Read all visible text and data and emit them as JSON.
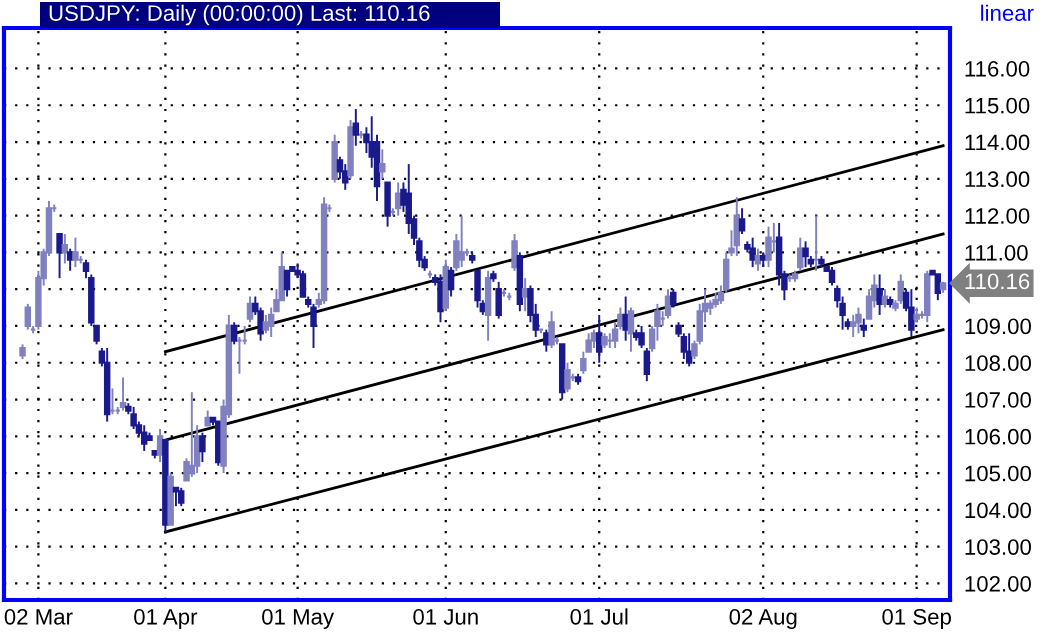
{
  "chart_data": {
    "type": "candlestick",
    "title": "USDJPY: Daily (00:00:00) Last: 110.16",
    "annotations": [
      "linear",
      "110.16"
    ],
    "grid": true,
    "colors": [
      "#8181c0",
      "#8181c0",
      "#8181c0",
      "#8181c0",
      "#8181c0",
      "#8181c0",
      "#8181c0",
      "#1a1a8c",
      "#8181c0",
      "#1a1a8c",
      "#8181c0",
      "#8181c0",
      "#1a1a8c",
      "#1a1a8c",
      "#1a1a8c",
      "#1a1a8c",
      "#1a1a8c",
      "#8181c0",
      "#8181c0",
      "#8181c0",
      "#1a1a8c",
      "#1a1a8c",
      "#1a1a8c",
      "#1a1a8c",
      "#1a1a8c",
      "#1a1a8c",
      "#8181c0",
      "#1a1a8c",
      "#8181c0",
      "#1a1a8c",
      "#1a1a8c",
      "#8181c0",
      "#8181c0",
      "#8181c0",
      "#1a1a8c",
      "#8181c0",
      "#1a1a8c",
      "#1a1a8c",
      "#8181c0",
      "#8181c0",
      "#1a1a8c",
      "#8181c0",
      "#8181c0",
      "#8181c0",
      "#1a1a8c",
      "#1a1a8c",
      "#8181c0",
      "#8181c0",
      "#8181c0",
      "#8181c0",
      "#1a1a8c",
      "#1a1a8c",
      "#1a1a8c",
      "#1a1a8c",
      "#1a1a8c",
      "#1a1a8c",
      "#8181c0",
      "#8181c0",
      "#8181c0",
      "#8181c0",
      "#1a1a8c",
      "#1a1a8c",
      "#8181c0",
      "#1a1a8c",
      "#8181c0",
      "#1a1a8c",
      "#1a1a8c",
      "#1a1a8c",
      "#8181c0",
      "#1a1a8c",
      "#8181c0",
      "#8181c0",
      "#1a1a8c",
      "#1a1a8c",
      "#1a1a8c",
      "#1a1a8c",
      "#1a1a8c",
      "#8181c0",
      "#1a1a8c",
      "#1a1a8c",
      "#8181c0",
      "#1a1a8c",
      "#8181c0",
      "#8181c0",
      "#8181c0",
      "#1a1a8c",
      "#1a1a8c",
      "#1a1a8c",
      "#8181c0",
      "#1a1a8c",
      "#1a1a8c",
      "#8181c0",
      "#8181c0",
      "#8181c0",
      "#1a1a8c",
      "#8181c0",
      "#1a1a8c",
      "#1a1a8c",
      "#8181c0",
      "#1a1a8c",
      "#8181c0",
      "#8181c0",
      "#1a1a8c",
      "#8181c0",
      "#8181c0",
      "#1a1a8c",
      "#8181c0",
      "#8181c0",
      "#8181c0",
      "#1a1a8c",
      "#8181c0",
      "#8181c0",
      "#8181c0",
      "#8181c0",
      "#1a1a8c",
      "#8181c0",
      "#1a1a8c",
      "#1a1a8c",
      "#1a1a8c",
      "#8181c0",
      "#8181c0",
      "#8181c0",
      "#8181c0",
      "#1a1a8c",
      "#1a1a8c",
      "#1a1a8c",
      "#1a1a8c",
      "#8181c0",
      "#8181c0",
      "#8181c0",
      "#8181c0",
      "#8181c0",
      "#8181c0",
      "#8181c0",
      "#8181c0",
      "#8181c0",
      "#1a1a8c",
      "#1a1a8c",
      "#1a1a8c",
      "#8181c0",
      "#1a1a8c",
      "#8181c0",
      "#8181c0",
      "#1a1a8c",
      "#1a1a8c",
      "#8181c0",
      "#8181c0",
      "#8181c0",
      "#1a1a8c",
      "#1a1a8c",
      "#8181c0",
      "#1a1a8c",
      "#1a1a8c",
      "#1a1a8c",
      "#1a1a8c",
      "#1a1a8c",
      "#1a1a8c",
      "#8181c0",
      "#8181c0",
      "#1a1a8c",
      "#8181c0",
      "#8181c0",
      "#1a1a8c",
      "#8181c0",
      "#1a1a8c",
      "#8181c0",
      "#8181c0",
      "#1a1a8c",
      "#1a1a8c",
      "#8181c0",
      "#8181c0",
      "#8181c0",
      "#1a1a8c",
      "#1a1a8c",
      "#8181c0"
    ],
    "categories": [
      null,
      null,
      null,
      "02 Mar",
      null,
      null,
      null,
      null,
      null,
      null,
      null,
      null,
      null,
      null,
      null,
      null,
      null,
      null,
      null,
      null,
      null,
      null,
      null,
      null,
      null,
      null,
      null,
      "01 Apr",
      null,
      null,
      null,
      null,
      null,
      null,
      null,
      null,
      null,
      null,
      null,
      null,
      null,
      null,
      null,
      null,
      null,
      null,
      null,
      null,
      null,
      null,
      null,
      null,
      "01 May",
      null,
      null,
      null,
      null,
      null,
      null,
      null,
      null,
      null,
      null,
      null,
      null,
      null,
      null,
      null,
      null,
      null,
      null,
      null,
      null,
      null,
      null,
      null,
      null,
      null,
      null,
      null,
      "01 Jun",
      null,
      null,
      null,
      null,
      null,
      null,
      null,
      null,
      null,
      null,
      null,
      null,
      null,
      null,
      null,
      null,
      null,
      null,
      null,
      null,
      null,
      null,
      null,
      null,
      null,
      null,
      null,
      null,
      "01 Jul",
      null,
      null,
      null,
      null,
      null,
      null,
      null,
      null,
      null,
      null,
      null,
      null,
      null,
      null,
      null,
      null,
      null,
      null,
      null,
      null,
      null,
      null,
      null,
      null,
      null,
      null,
      null,
      null,
      null,
      null,
      "02 Aug",
      null,
      null,
      null,
      null,
      null,
      null,
      null,
      null,
      null,
      null,
      null,
      null,
      null,
      null,
      null,
      null,
      null,
      null,
      null,
      null,
      null,
      null,
      null,
      null,
      null,
      null,
      null,
      null,
      "01 Sep",
      null,
      null,
      null,
      null,
      null
    ],
    "ohlc": [
      [
        108.2,
        108.5,
        108.1,
        108.4
      ],
      [
        109.0,
        109.6,
        108.9,
        109.5
      ],
      [
        108.9,
        109.0,
        108.8,
        108.9
      ],
      [
        109.0,
        110.5,
        108.9,
        110.3
      ],
      [
        110.3,
        111.1,
        110.1,
        111.0
      ],
      [
        111.0,
        112.4,
        110.9,
        112.2
      ],
      [
        112.2,
        112.3,
        112.1,
        112.2
      ],
      [
        111.5,
        111.5,
        110.3,
        111.0
      ],
      [
        111.0,
        111.5,
        110.7,
        111.2
      ],
      [
        111.0,
        111.1,
        110.5,
        110.8
      ],
      [
        110.8,
        111.4,
        110.6,
        111.0
      ],
      [
        110.8,
        110.9,
        110.7,
        110.8
      ],
      [
        110.7,
        110.8,
        110.3,
        110.5
      ],
      [
        110.3,
        110.4,
        109.0,
        109.1
      ],
      [
        109.0,
        109.0,
        108.5,
        108.6
      ],
      [
        108.3,
        108.4,
        107.9,
        108.0
      ],
      [
        108.0,
        108.4,
        106.4,
        106.6
      ],
      [
        106.7,
        107.3,
        106.6,
        106.7
      ],
      [
        106.7,
        106.8,
        106.6,
        106.7
      ],
      [
        106.8,
        107.6,
        106.7,
        106.9
      ],
      [
        106.8,
        106.9,
        106.6,
        106.7
      ],
      [
        106.6,
        106.8,
        106.2,
        106.3
      ],
      [
        106.3,
        106.4,
        106.0,
        106.1
      ],
      [
        106.1,
        106.3,
        105.6,
        105.8
      ],
      [
        106.0,
        106.1,
        105.9,
        105.9
      ],
      [
        105.6,
        105.6,
        105.4,
        105.5
      ],
      [
        105.5,
        106.2,
        105.3,
        106.0
      ],
      [
        105.9,
        105.9,
        103.4,
        103.6
      ],
      [
        103.6,
        105.0,
        103.6,
        104.9
      ],
      [
        104.6,
        104.6,
        104.1,
        104.5
      ],
      [
        104.5,
        104.6,
        104.1,
        104.2
      ],
      [
        104.8,
        105.4,
        104.8,
        105.3
      ],
      [
        105.0,
        107.2,
        104.9,
        105.2
      ],
      [
        105.2,
        106.3,
        105.0,
        106.0
      ],
      [
        106.0,
        106.1,
        105.3,
        105.6
      ],
      [
        106.3,
        106.7,
        106.3,
        106.5
      ],
      [
        106.5,
        106.5,
        106.3,
        106.4
      ],
      [
        106.4,
        106.4,
        105.2,
        105.3
      ],
      [
        105.2,
        107.0,
        105.0,
        106.8
      ],
      [
        106.6,
        109.3,
        106.5,
        109.0
      ],
      [
        109.0,
        109.1,
        108.5,
        108.6
      ],
      [
        108.6,
        108.7,
        107.7,
        108.6
      ],
      [
        108.6,
        109.0,
        108.5,
        108.6
      ],
      [
        109.2,
        109.8,
        109.1,
        109.6
      ],
      [
        109.6,
        109.8,
        109.3,
        109.4
      ],
      [
        109.4,
        109.5,
        108.6,
        108.8
      ],
      [
        108.9,
        109.3,
        108.8,
        109.1
      ],
      [
        109.0,
        109.5,
        108.7,
        109.3
      ],
      [
        109.4,
        110.0,
        109.4,
        109.7
      ],
      [
        109.7,
        111.0,
        109.7,
        110.6
      ],
      [
        110.5,
        110.5,
        109.8,
        110.0
      ],
      [
        110.6,
        110.6,
        110.5,
        110.5
      ],
      [
        110.5,
        110.7,
        110.3,
        110.4
      ],
      [
        110.4,
        110.5,
        109.8,
        109.8
      ],
      [
        109.7,
        109.8,
        109.5,
        109.6
      ],
      [
        109.5,
        109.6,
        108.4,
        109.0
      ],
      [
        109.6,
        109.9,
        109.5,
        109.7
      ],
      [
        109.7,
        112.5,
        109.6,
        112.3
      ],
      [
        112.2,
        112.3,
        112.1,
        112.2
      ],
      [
        113.0,
        114.2,
        112.9,
        114.0
      ],
      [
        113.5,
        113.6,
        113.0,
        113.2
      ],
      [
        113.2,
        113.4,
        112.7,
        112.9
      ],
      [
        113.1,
        114.6,
        113.0,
        114.4
      ],
      [
        114.5,
        114.9,
        113.9,
        114.2
      ],
      [
        114.2,
        114.3,
        114.1,
        114.2
      ],
      [
        114.2,
        114.4,
        113.7,
        114.0
      ],
      [
        114.0,
        114.7,
        113.3,
        113.6
      ],
      [
        114.0,
        114.2,
        112.4,
        112.8
      ],
      [
        113.2,
        113.8,
        113.0,
        113.4
      ],
      [
        112.9,
        112.9,
        111.7,
        112.0
      ],
      [
        112.1,
        112.2,
        112.0,
        112.1
      ],
      [
        112.2,
        112.9,
        112.0,
        112.6
      ],
      [
        112.7,
        112.9,
        112.1,
        112.3
      ],
      [
        112.6,
        113.4,
        111.5,
        111.8
      ],
      [
        111.9,
        112.0,
        111.2,
        111.4
      ],
      [
        111.3,
        111.4,
        110.6,
        110.8
      ],
      [
        110.8,
        110.9,
        110.5,
        110.6
      ],
      [
        110.4,
        110.5,
        110.3,
        110.4
      ],
      [
        110.3,
        110.4,
        110.1,
        110.2
      ],
      [
        110.2,
        110.4,
        109.1,
        109.4
      ],
      [
        109.5,
        110.8,
        109.4,
        110.6
      ],
      [
        110.5,
        110.6,
        109.8,
        110.0
      ],
      [
        110.6,
        111.5,
        110.5,
        111.3
      ],
      [
        110.8,
        112.0,
        110.6,
        111.0
      ],
      [
        111.0,
        111.1,
        110.9,
        111.0
      ],
      [
        110.9,
        111.0,
        110.7,
        110.8
      ],
      [
        110.5,
        110.5,
        109.5,
        109.7
      ],
      [
        109.6,
        109.7,
        109.3,
        109.4
      ],
      [
        109.3,
        110.5,
        108.6,
        110.3
      ],
      [
        110.4,
        110.5,
        110.2,
        110.3
      ],
      [
        110.0,
        110.2,
        109.2,
        109.3
      ],
      [
        109.9,
        110.0,
        109.8,
        109.9
      ],
      [
        109.8,
        109.9,
        109.7,
        109.8
      ],
      [
        110.6,
        111.5,
        110.5,
        111.3
      ],
      [
        110.9,
        111.0,
        109.4,
        109.6
      ],
      [
        109.8,
        110.3,
        109.4,
        110.0
      ],
      [
        110.0,
        110.1,
        109.1,
        109.3
      ],
      [
        109.3,
        109.6,
        108.7,
        108.9
      ],
      [
        108.9,
        108.9,
        108.8,
        108.9
      ],
      [
        108.8,
        108.9,
        108.3,
        108.5
      ],
      [
        108.5,
        109.4,
        108.4,
        109.1
      ],
      [
        108.6,
        108.7,
        108.5,
        108.6
      ],
      [
        108.5,
        108.5,
        107.0,
        107.2
      ],
      [
        107.3,
        108.0,
        107.2,
        107.8
      ],
      [
        107.6,
        107.7,
        107.5,
        107.6
      ],
      [
        107.6,
        107.7,
        107.4,
        107.5
      ],
      [
        107.8,
        108.3,
        107.7,
        108.1
      ],
      [
        108.3,
        108.8,
        108.3,
        108.6
      ],
      [
        108.6,
        108.9,
        108.4,
        108.8
      ],
      [
        108.8,
        109.3,
        108.0,
        108.3
      ],
      [
        108.5,
        108.8,
        108.4,
        108.7
      ],
      [
        108.6,
        108.8,
        108.4,
        108.6
      ],
      [
        108.6,
        109.1,
        108.4,
        108.9
      ],
      [
        109.0,
        109.5,
        108.9,
        109.3
      ],
      [
        109.3,
        109.8,
        108.6,
        108.9
      ],
      [
        108.8,
        109.5,
        108.3,
        109.4
      ],
      [
        108.8,
        108.9,
        108.6,
        108.7
      ],
      [
        108.8,
        109.0,
        108.4,
        108.5
      ],
      [
        108.3,
        108.4,
        107.5,
        107.7
      ],
      [
        108.4,
        109.0,
        108.3,
        108.9
      ],
      [
        109.0,
        109.6,
        108.6,
        109.4
      ],
      [
        109.2,
        109.4,
        109.0,
        109.2
      ],
      [
        109.3,
        110.0,
        109.2,
        109.8
      ],
      [
        109.9,
        110.0,
        109.5,
        109.6
      ],
      [
        109.0,
        109.1,
        108.7,
        108.8
      ],
      [
        108.7,
        108.8,
        108.1,
        108.3
      ],
      [
        108.3,
        108.8,
        107.9,
        108.0
      ],
      [
        108.2,
        108.6,
        108.1,
        108.5
      ],
      [
        108.6,
        109.6,
        108.5,
        109.4
      ],
      [
        109.4,
        110.0,
        109.1,
        109.6
      ],
      [
        109.5,
        109.7,
        109.3,
        109.6
      ],
      [
        109.6,
        109.9,
        109.5,
        109.7
      ],
      [
        109.7,
        110.1,
        109.6,
        109.9
      ],
      [
        110.0,
        111.0,
        109.9,
        110.8
      ],
      [
        111.0,
        111.6,
        110.9,
        111.1
      ],
      [
        111.2,
        112.5,
        110.9,
        112.0
      ],
      [
        111.9,
        112.2,
        111.5,
        111.6
      ],
      [
        111.2,
        111.3,
        111.0,
        111.1
      ],
      [
        111.1,
        111.4,
        110.6,
        110.8
      ],
      [
        110.7,
        111.1,
        110.5,
        110.9
      ],
      [
        110.9,
        111.0,
        110.6,
        110.8
      ],
      [
        110.8,
        111.7,
        110.6,
        111.4
      ],
      [
        111.3,
        111.8,
        111.0,
        111.3
      ],
      [
        111.4,
        111.8,
        110.1,
        110.4
      ],
      [
        110.4,
        110.5,
        109.7,
        110.0
      ],
      [
        110.3,
        110.4,
        110.2,
        110.3
      ],
      [
        110.3,
        110.5,
        110.2,
        110.4
      ],
      [
        110.6,
        111.4,
        110.5,
        111.1
      ],
      [
        111.1,
        111.3,
        110.6,
        110.9
      ],
      [
        110.8,
        110.9,
        110.6,
        110.7
      ],
      [
        110.8,
        112.0,
        110.5,
        110.8
      ],
      [
        110.8,
        110.9,
        110.6,
        110.7
      ],
      [
        110.6,
        110.6,
        110.5,
        110.5
      ],
      [
        110.5,
        110.6,
        110.1,
        110.2
      ],
      [
        110.0,
        110.1,
        109.5,
        109.7
      ],
      [
        109.6,
        109.8,
        108.9,
        109.3
      ],
      [
        109.1,
        109.2,
        108.9,
        109.0
      ],
      [
        109.0,
        109.3,
        108.7,
        109.1
      ],
      [
        109.1,
        109.5,
        108.8,
        109.3
      ],
      [
        109.0,
        109.2,
        108.7,
        108.9
      ],
      [
        109.2,
        110.0,
        109.2,
        109.8
      ],
      [
        109.7,
        110.4,
        109.5,
        110.1
      ],
      [
        110.0,
        110.4,
        109.3,
        109.6
      ],
      [
        109.6,
        110.0,
        109.5,
        109.8
      ],
      [
        109.7,
        109.8,
        109.5,
        109.6
      ],
      [
        109.5,
        109.7,
        109.4,
        109.6
      ],
      [
        109.7,
        110.4,
        109.6,
        110.2
      ],
      [
        109.9,
        110.0,
        109.4,
        109.5
      ],
      [
        109.5,
        110.0,
        108.7,
        108.9
      ],
      [
        109.2,
        109.5,
        109.1,
        109.3
      ],
      [
        109.3,
        109.4,
        109.2,
        109.3
      ],
      [
        109.3,
        110.5,
        109.1,
        110.4
      ],
      [
        110.5,
        110.5,
        110.4,
        110.4
      ],
      [
        110.4,
        110.4,
        109.7,
        109.9
      ],
      [
        110.0,
        110.2,
        109.9,
        110.16
      ]
    ],
    "series": [
      {
        "type": "line",
        "color": "#000000",
        "values": [
          null,
          null,
          null,
          null,
          null,
          null,
          null,
          null,
          null,
          null,
          null,
          null,
          null,
          null,
          null,
          null,
          null,
          null,
          null,
          null,
          null,
          null,
          null,
          null,
          null,
          null,
          null,
          108.3,
          null,
          null,
          null,
          null,
          null,
          null,
          null,
          null,
          null,
          null,
          null,
          null,
          null,
          null,
          null,
          null,
          null,
          null,
          null,
          null,
          null,
          null,
          null,
          null,
          null,
          null,
          null,
          null,
          null,
          null,
          null,
          null,
          null,
          null,
          null,
          null,
          null,
          null,
          null,
          null,
          null,
          null,
          null,
          null,
          null,
          null,
          null,
          null,
          null,
          null,
          null,
          null,
          null,
          null,
          null,
          null,
          null,
          null,
          null,
          null,
          null,
          null,
          null,
          null,
          null,
          null,
          null,
          null,
          null,
          null,
          null,
          null,
          null,
          null,
          null,
          null,
          null,
          null,
          null,
          null,
          null,
          null,
          null,
          null,
          null,
          null,
          null,
          null,
          null,
          null,
          null,
          null,
          null,
          null,
          null,
          null,
          null,
          null,
          null,
          null,
          null,
          null,
          null,
          null,
          null,
          null,
          null,
          null,
          null,
          null,
          null,
          null,
          null,
          null,
          null,
          null,
          null,
          null,
          null,
          null,
          null,
          null,
          null,
          null,
          null,
          null,
          null,
          null,
          null,
          null,
          null,
          null,
          null,
          null,
          null,
          null,
          null,
          null,
          null,
          null,
          null,
          null,
          null,
          null,
          null,
          null,
          113.9
        ]
      },
      {
        "type": "line",
        "color": "#000000",
        "values": [
          null,
          null,
          null,
          null,
          null,
          null,
          null,
          null,
          null,
          null,
          null,
          null,
          null,
          null,
          null,
          null,
          null,
          null,
          null,
          null,
          null,
          null,
          null,
          null,
          null,
          null,
          null,
          105.9,
          null,
          null,
          null,
          null,
          null,
          null,
          null,
          null,
          null,
          null,
          null,
          null,
          null,
          null,
          null,
          null,
          null,
          null,
          null,
          null,
          null,
          null,
          null,
          null,
          null,
          null,
          null,
          null,
          null,
          null,
          null,
          null,
          null,
          null,
          null,
          null,
          null,
          null,
          null,
          null,
          null,
          null,
          null,
          null,
          null,
          null,
          null,
          null,
          null,
          null,
          null,
          null,
          null,
          null,
          null,
          null,
          null,
          null,
          null,
          null,
          null,
          null,
          null,
          null,
          null,
          null,
          null,
          null,
          null,
          null,
          null,
          null,
          null,
          null,
          null,
          null,
          null,
          null,
          null,
          null,
          null,
          null,
          null,
          null,
          null,
          null,
          null,
          null,
          null,
          null,
          null,
          null,
          null,
          null,
          null,
          null,
          null,
          null,
          null,
          null,
          null,
          null,
          null,
          null,
          null,
          null,
          null,
          null,
          null,
          null,
          null,
          null,
          null,
          null,
          null,
          null,
          null,
          null,
          null,
          null,
          null,
          null,
          null,
          null,
          null,
          null,
          null,
          null,
          null,
          null,
          null,
          null,
          null,
          null,
          null,
          null,
          null,
          null,
          null,
          null,
          null,
          null,
          null,
          null,
          null,
          null,
          111.5
        ]
      },
      {
        "type": "line",
        "color": "#000000",
        "values": [
          null,
          null,
          null,
          null,
          null,
          null,
          null,
          null,
          null,
          null,
          null,
          null,
          null,
          null,
          null,
          null,
          null,
          null,
          null,
          null,
          null,
          null,
          null,
          null,
          null,
          null,
          null,
          103.4,
          null,
          null,
          null,
          null,
          null,
          null,
          null,
          null,
          null,
          null,
          null,
          null,
          null,
          null,
          null,
          null,
          null,
          null,
          null,
          null,
          null,
          null,
          null,
          null,
          null,
          null,
          null,
          null,
          null,
          null,
          null,
          null,
          null,
          null,
          null,
          null,
          null,
          null,
          null,
          null,
          null,
          null,
          null,
          null,
          null,
          null,
          null,
          null,
          null,
          null,
          null,
          null,
          null,
          null,
          null,
          null,
          null,
          null,
          null,
          null,
          null,
          null,
          null,
          null,
          null,
          null,
          null,
          null,
          null,
          null,
          null,
          null,
          null,
          null,
          null,
          null,
          null,
          null,
          null,
          null,
          null,
          null,
          null,
          null,
          null,
          null,
          null,
          null,
          null,
          null,
          null,
          null,
          null,
          null,
          null,
          null,
          null,
          null,
          null,
          null,
          null,
          null,
          null,
          null,
          null,
          null,
          null,
          null,
          null,
          null,
          null,
          null,
          null,
          null,
          null,
          null,
          null,
          null,
          null,
          null,
          null,
          null,
          null,
          null,
          null,
          null,
          null,
          null,
          null,
          null,
          null,
          null,
          null,
          null,
          null,
          null,
          null,
          null,
          null,
          null,
          null,
          null,
          null,
          null,
          null,
          null,
          108.9
        ]
      }
    ],
    "ylim": [
      101.55,
      117.1
    ],
    "yticks": [
      {
        "value": 102,
        "label": "102.00"
      },
      {
        "value": 103,
        "label": "103.00"
      },
      {
        "value": 104,
        "label": "104.00"
      },
      {
        "value": 105,
        "label": "105.00"
      },
      {
        "value": 106,
        "label": "106.00"
      },
      {
        "value": 107,
        "label": "107.00"
      },
      {
        "value": 108,
        "label": "108.00"
      },
      {
        "value": 109,
        "label": "109.00"
      },
      {
        "value": 110,
        "label": null
      },
      {
        "value": 111,
        "label": "111.00"
      },
      {
        "value": 112,
        "label": "112.00"
      },
      {
        "value": 113,
        "label": "113.00"
      },
      {
        "value": 114,
        "label": "114.00"
      },
      {
        "value": 115,
        "label": "115.00"
      },
      {
        "value": 116,
        "label": "116.00"
      }
    ]
  }
}
